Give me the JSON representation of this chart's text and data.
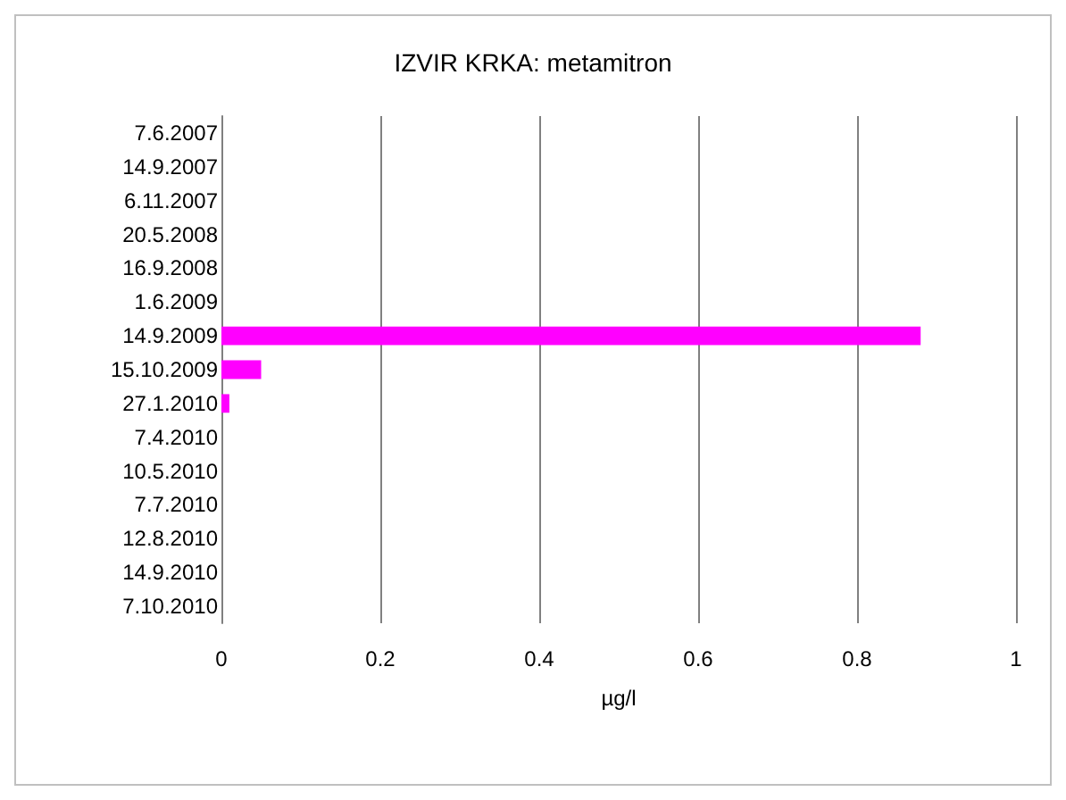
{
  "chart_data": {
    "type": "bar",
    "orientation": "horizontal",
    "title": "IZVIR KRKA: metamitron",
    "xlabel": "µg/l",
    "categories": [
      "7.6.2007",
      "14.9.2007",
      "6.11.2007",
      "20.5.2008",
      "16.9.2008",
      "1.6.2009",
      "14.9.2009",
      "15.10.2009",
      "27.1.2010",
      "7.4.2010",
      "10.5.2010",
      "7.7.2010",
      "12.8.2010",
      "14.9.2010",
      "7.10.2010"
    ],
    "values": [
      0,
      0,
      0,
      0,
      0,
      0,
      0.88,
      0.05,
      0.01,
      0,
      0,
      0,
      0,
      0,
      0
    ],
    "color": "#ff00ff",
    "xlim": [
      0,
      1
    ],
    "xticks": [
      0,
      0.2,
      0.4,
      0.6,
      0.8,
      1
    ],
    "grid": "x"
  }
}
